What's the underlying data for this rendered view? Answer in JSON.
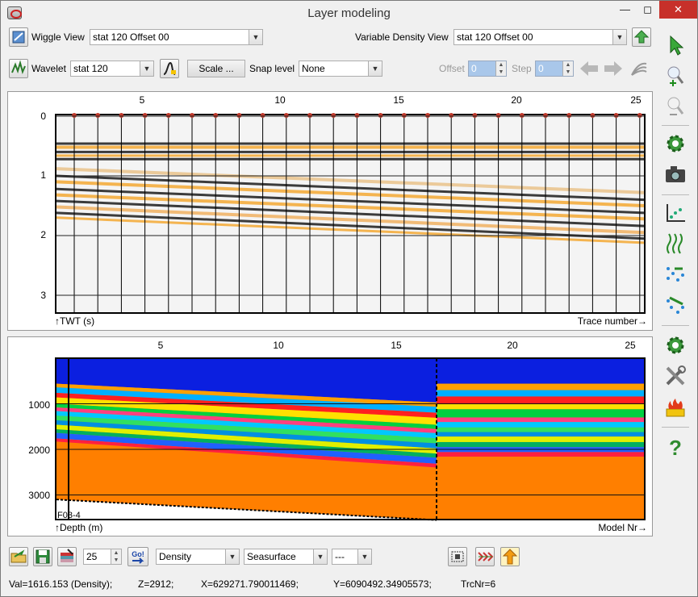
{
  "window": {
    "title": "Layer modeling"
  },
  "toolbar1": {
    "wiggle_label": "Wiggle View",
    "wiggle_value": "stat 120 Offset 00",
    "vd_label": "Variable Density View",
    "vd_value": "stat 120 Offset 00"
  },
  "toolbar2": {
    "wavelet_label": "Wavelet",
    "wavelet_value": "stat 120",
    "scale_label": "Scale ...",
    "snap_label": "Snap level",
    "snap_value": "None",
    "offset_label": "Offset",
    "offset_value": "0",
    "step_label": "Step",
    "step_value": "0"
  },
  "seismic": {
    "x_ticks": [
      "5",
      "10",
      "15",
      "20",
      "25"
    ],
    "y_ticks": [
      "0",
      "1",
      "2",
      "3"
    ],
    "ylabel": "↑TWT (s)",
    "xlabel": "Trace number→"
  },
  "model": {
    "x_ticks": [
      "5",
      "10",
      "15",
      "20",
      "25"
    ],
    "y_ticks": [
      "1000",
      "2000",
      "3000"
    ],
    "ylabel": "↑Depth (m)",
    "xlabel": "Model Nr→",
    "well_label": "F03-4"
  },
  "bottom": {
    "spin_value": "25",
    "go_label": "Go!",
    "prop_value": "Density",
    "ref_value": "Seasurface",
    "extra_value": "---"
  },
  "status": {
    "val": "Val=1616.153 (Density);",
    "z": "Z=2912;",
    "x": "X=629271.790011469;",
    "y": "Y=6090492.34905573;",
    "trc": "TrcNr=6"
  },
  "icons": [
    "pointer-icon",
    "zoom-in-icon",
    "zoom-out-icon",
    "settings-gear-icon",
    "camera-icon",
    "crossplot-icon",
    "wiggle-icon",
    "rays-icon",
    "synthetic-icon",
    "gear-icon",
    "tools-icon",
    "fire-icon",
    "help-icon"
  ]
}
